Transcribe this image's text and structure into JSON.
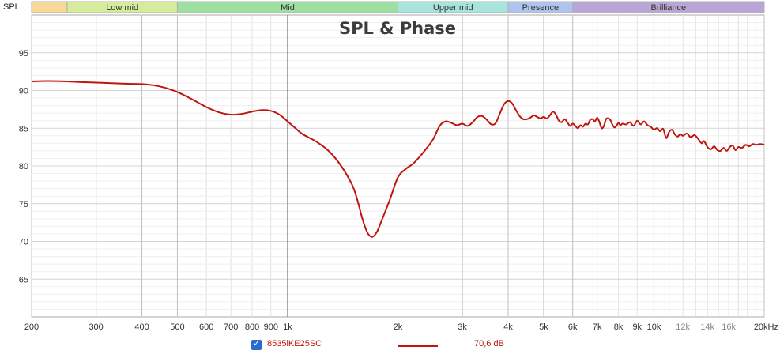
{
  "corner_label": "SPL",
  "bands": [
    {
      "label": "",
      "from": 200,
      "to": 250,
      "color": "#f8d898"
    },
    {
      "label": "Low mid",
      "from": 250,
      "to": 500,
      "color": "#d6ec9c"
    },
    {
      "label": "Mid",
      "from": 500,
      "to": 2000,
      "color": "#9ee0a2"
    },
    {
      "label": "Upper mid",
      "from": 2000,
      "to": 4000,
      "color": "#a6e4dc"
    },
    {
      "label": "Presence",
      "from": 4000,
      "to": 6000,
      "color": "#aec4ec"
    },
    {
      "label": "Brilliance",
      "from": 6000,
      "to": 20000,
      "color": "#baa6d6"
    }
  ],
  "legend": {
    "checked": true,
    "series_name": "8535iKE25SC",
    "value_text": "70,6 dB"
  },
  "chart_data": {
    "type": "line",
    "title": "SPL & Phase",
    "xlabel": "",
    "ylabel": "",
    "x_scale": "log",
    "xlim": [
      200,
      20000
    ],
    "ylim": [
      60,
      100
    ],
    "grid": true,
    "x_tick_labels": [
      {
        "value": 200,
        "label": "200"
      },
      {
        "value": 300,
        "label": "300"
      },
      {
        "value": 400,
        "label": "400"
      },
      {
        "value": 500,
        "label": "500"
      },
      {
        "value": 600,
        "label": "600"
      },
      {
        "value": 700,
        "label": "700"
      },
      {
        "value": 800,
        "label": "800"
      },
      {
        "value": 900,
        "label": "900"
      },
      {
        "value": 1000,
        "label": "1k"
      },
      {
        "value": 2000,
        "label": "2k"
      },
      {
        "value": 3000,
        "label": "3k"
      },
      {
        "value": 4000,
        "label": "4k"
      },
      {
        "value": 5000,
        "label": "5k"
      },
      {
        "value": 6000,
        "label": "6k"
      },
      {
        "value": 7000,
        "label": "7k"
      },
      {
        "value": 8000,
        "label": "8k"
      },
      {
        "value": 9000,
        "label": "9k"
      },
      {
        "value": 10000,
        "label": "10k"
      },
      {
        "value": 12000,
        "label": "12k"
      },
      {
        "value": 14000,
        "label": "14k"
      },
      {
        "value": 16000,
        "label": "16k"
      },
      {
        "value": 20000,
        "label": "20kHz"
      }
    ],
    "y_ticks": [
      65,
      70,
      75,
      80,
      85,
      90,
      95
    ],
    "series": [
      {
        "name": "8535iKE25SC",
        "color": "#c0140f",
        "points": [
          [
            200,
            91.2
          ],
          [
            220,
            91.25
          ],
          [
            250,
            91.2
          ],
          [
            280,
            91.1
          ],
          [
            320,
            91.0
          ],
          [
            360,
            90.9
          ],
          [
            400,
            90.85
          ],
          [
            430,
            90.7
          ],
          [
            460,
            90.4
          ],
          [
            500,
            89.8
          ],
          [
            550,
            88.8
          ],
          [
            600,
            87.8
          ],
          [
            650,
            87.1
          ],
          [
            700,
            86.8
          ],
          [
            750,
            86.9
          ],
          [
            800,
            87.2
          ],
          [
            850,
            87.4
          ],
          [
            900,
            87.3
          ],
          [
            950,
            86.8
          ],
          [
            1000,
            85.9
          ],
          [
            1050,
            85.0
          ],
          [
            1100,
            84.2
          ],
          [
            1200,
            83.2
          ],
          [
            1300,
            81.9
          ],
          [
            1400,
            80.0
          ],
          [
            1500,
            77.5
          ],
          [
            1550,
            75.5
          ],
          [
            1600,
            73.0
          ],
          [
            1650,
            71.2
          ],
          [
            1700,
            70.6
          ],
          [
            1750,
            71.2
          ],
          [
            1800,
            72.6
          ],
          [
            1900,
            75.5
          ],
          [
            2000,
            78.5
          ],
          [
            2100,
            79.6
          ],
          [
            2200,
            80.3
          ],
          [
            2300,
            81.3
          ],
          [
            2400,
            82.4
          ],
          [
            2500,
            83.6
          ],
          [
            2600,
            85.3
          ],
          [
            2700,
            85.9
          ],
          [
            2800,
            85.7
          ],
          [
            2900,
            85.4
          ],
          [
            3000,
            85.6
          ],
          [
            3100,
            85.3
          ],
          [
            3200,
            85.8
          ],
          [
            3300,
            86.5
          ],
          [
            3400,
            86.6
          ],
          [
            3500,
            86.1
          ],
          [
            3600,
            85.5
          ],
          [
            3700,
            85.7
          ],
          [
            3800,
            87.0
          ],
          [
            3900,
            88.2
          ],
          [
            4000,
            88.6
          ],
          [
            4100,
            88.3
          ],
          [
            4200,
            87.4
          ],
          [
            4300,
            86.6
          ],
          [
            4400,
            86.2
          ],
          [
            4500,
            86.2
          ],
          [
            4600,
            86.4
          ],
          [
            4700,
            86.7
          ],
          [
            4800,
            86.5
          ],
          [
            4900,
            86.3
          ],
          [
            5000,
            86.5
          ],
          [
            5100,
            86.3
          ],
          [
            5200,
            86.7
          ],
          [
            5300,
            87.2
          ],
          [
            5400,
            86.8
          ],
          [
            5500,
            86.0
          ],
          [
            5600,
            85.8
          ],
          [
            5700,
            86.2
          ],
          [
            5800,
            85.8
          ],
          [
            5900,
            85.3
          ],
          [
            6000,
            85.6
          ],
          [
            6100,
            85.3
          ],
          [
            6200,
            85.0
          ],
          [
            6300,
            85.4
          ],
          [
            6400,
            85.2
          ],
          [
            6500,
            85.6
          ],
          [
            6600,
            85.5
          ],
          [
            6700,
            86.1
          ],
          [
            6800,
            86.2
          ],
          [
            6900,
            85.9
          ],
          [
            7000,
            86.4
          ],
          [
            7100,
            85.8
          ],
          [
            7200,
            85.0
          ],
          [
            7300,
            85.3
          ],
          [
            7400,
            86.2
          ],
          [
            7500,
            86.3
          ],
          [
            7600,
            86.1
          ],
          [
            7700,
            85.5
          ],
          [
            7800,
            85.1
          ],
          [
            7900,
            85.3
          ],
          [
            8000,
            85.7
          ],
          [
            8100,
            85.4
          ],
          [
            8200,
            85.6
          ],
          [
            8400,
            85.5
          ],
          [
            8600,
            85.8
          ],
          [
            8800,
            85.3
          ],
          [
            9000,
            86.0
          ],
          [
            9200,
            85.5
          ],
          [
            9400,
            85.9
          ],
          [
            9600,
            85.4
          ],
          [
            9800,
            85.2
          ],
          [
            10000,
            84.8
          ],
          [
            10200,
            85.0
          ],
          [
            10400,
            84.6
          ],
          [
            10600,
            84.9
          ],
          [
            10800,
            83.7
          ],
          [
            11000,
            84.5
          ],
          [
            11200,
            84.8
          ],
          [
            11400,
            84.2
          ],
          [
            11600,
            83.9
          ],
          [
            11800,
            84.2
          ],
          [
            12000,
            84.0
          ],
          [
            12300,
            84.3
          ],
          [
            12600,
            83.8
          ],
          [
            12900,
            84.1
          ],
          [
            13200,
            83.6
          ],
          [
            13500,
            83.0
          ],
          [
            13700,
            83.3
          ],
          [
            14000,
            82.5
          ],
          [
            14300,
            82.2
          ],
          [
            14600,
            82.6
          ],
          [
            14900,
            82.1
          ],
          [
            15200,
            82.0
          ],
          [
            15500,
            82.4
          ],
          [
            15800,
            82.0
          ],
          [
            16100,
            82.5
          ],
          [
            16400,
            82.7
          ],
          [
            16700,
            82.1
          ],
          [
            17000,
            82.5
          ],
          [
            17400,
            82.4
          ],
          [
            17800,
            82.8
          ],
          [
            18200,
            82.6
          ],
          [
            18600,
            82.9
          ],
          [
            19000,
            82.8
          ],
          [
            19500,
            82.9
          ],
          [
            20000,
            82.8
          ]
        ]
      }
    ]
  }
}
